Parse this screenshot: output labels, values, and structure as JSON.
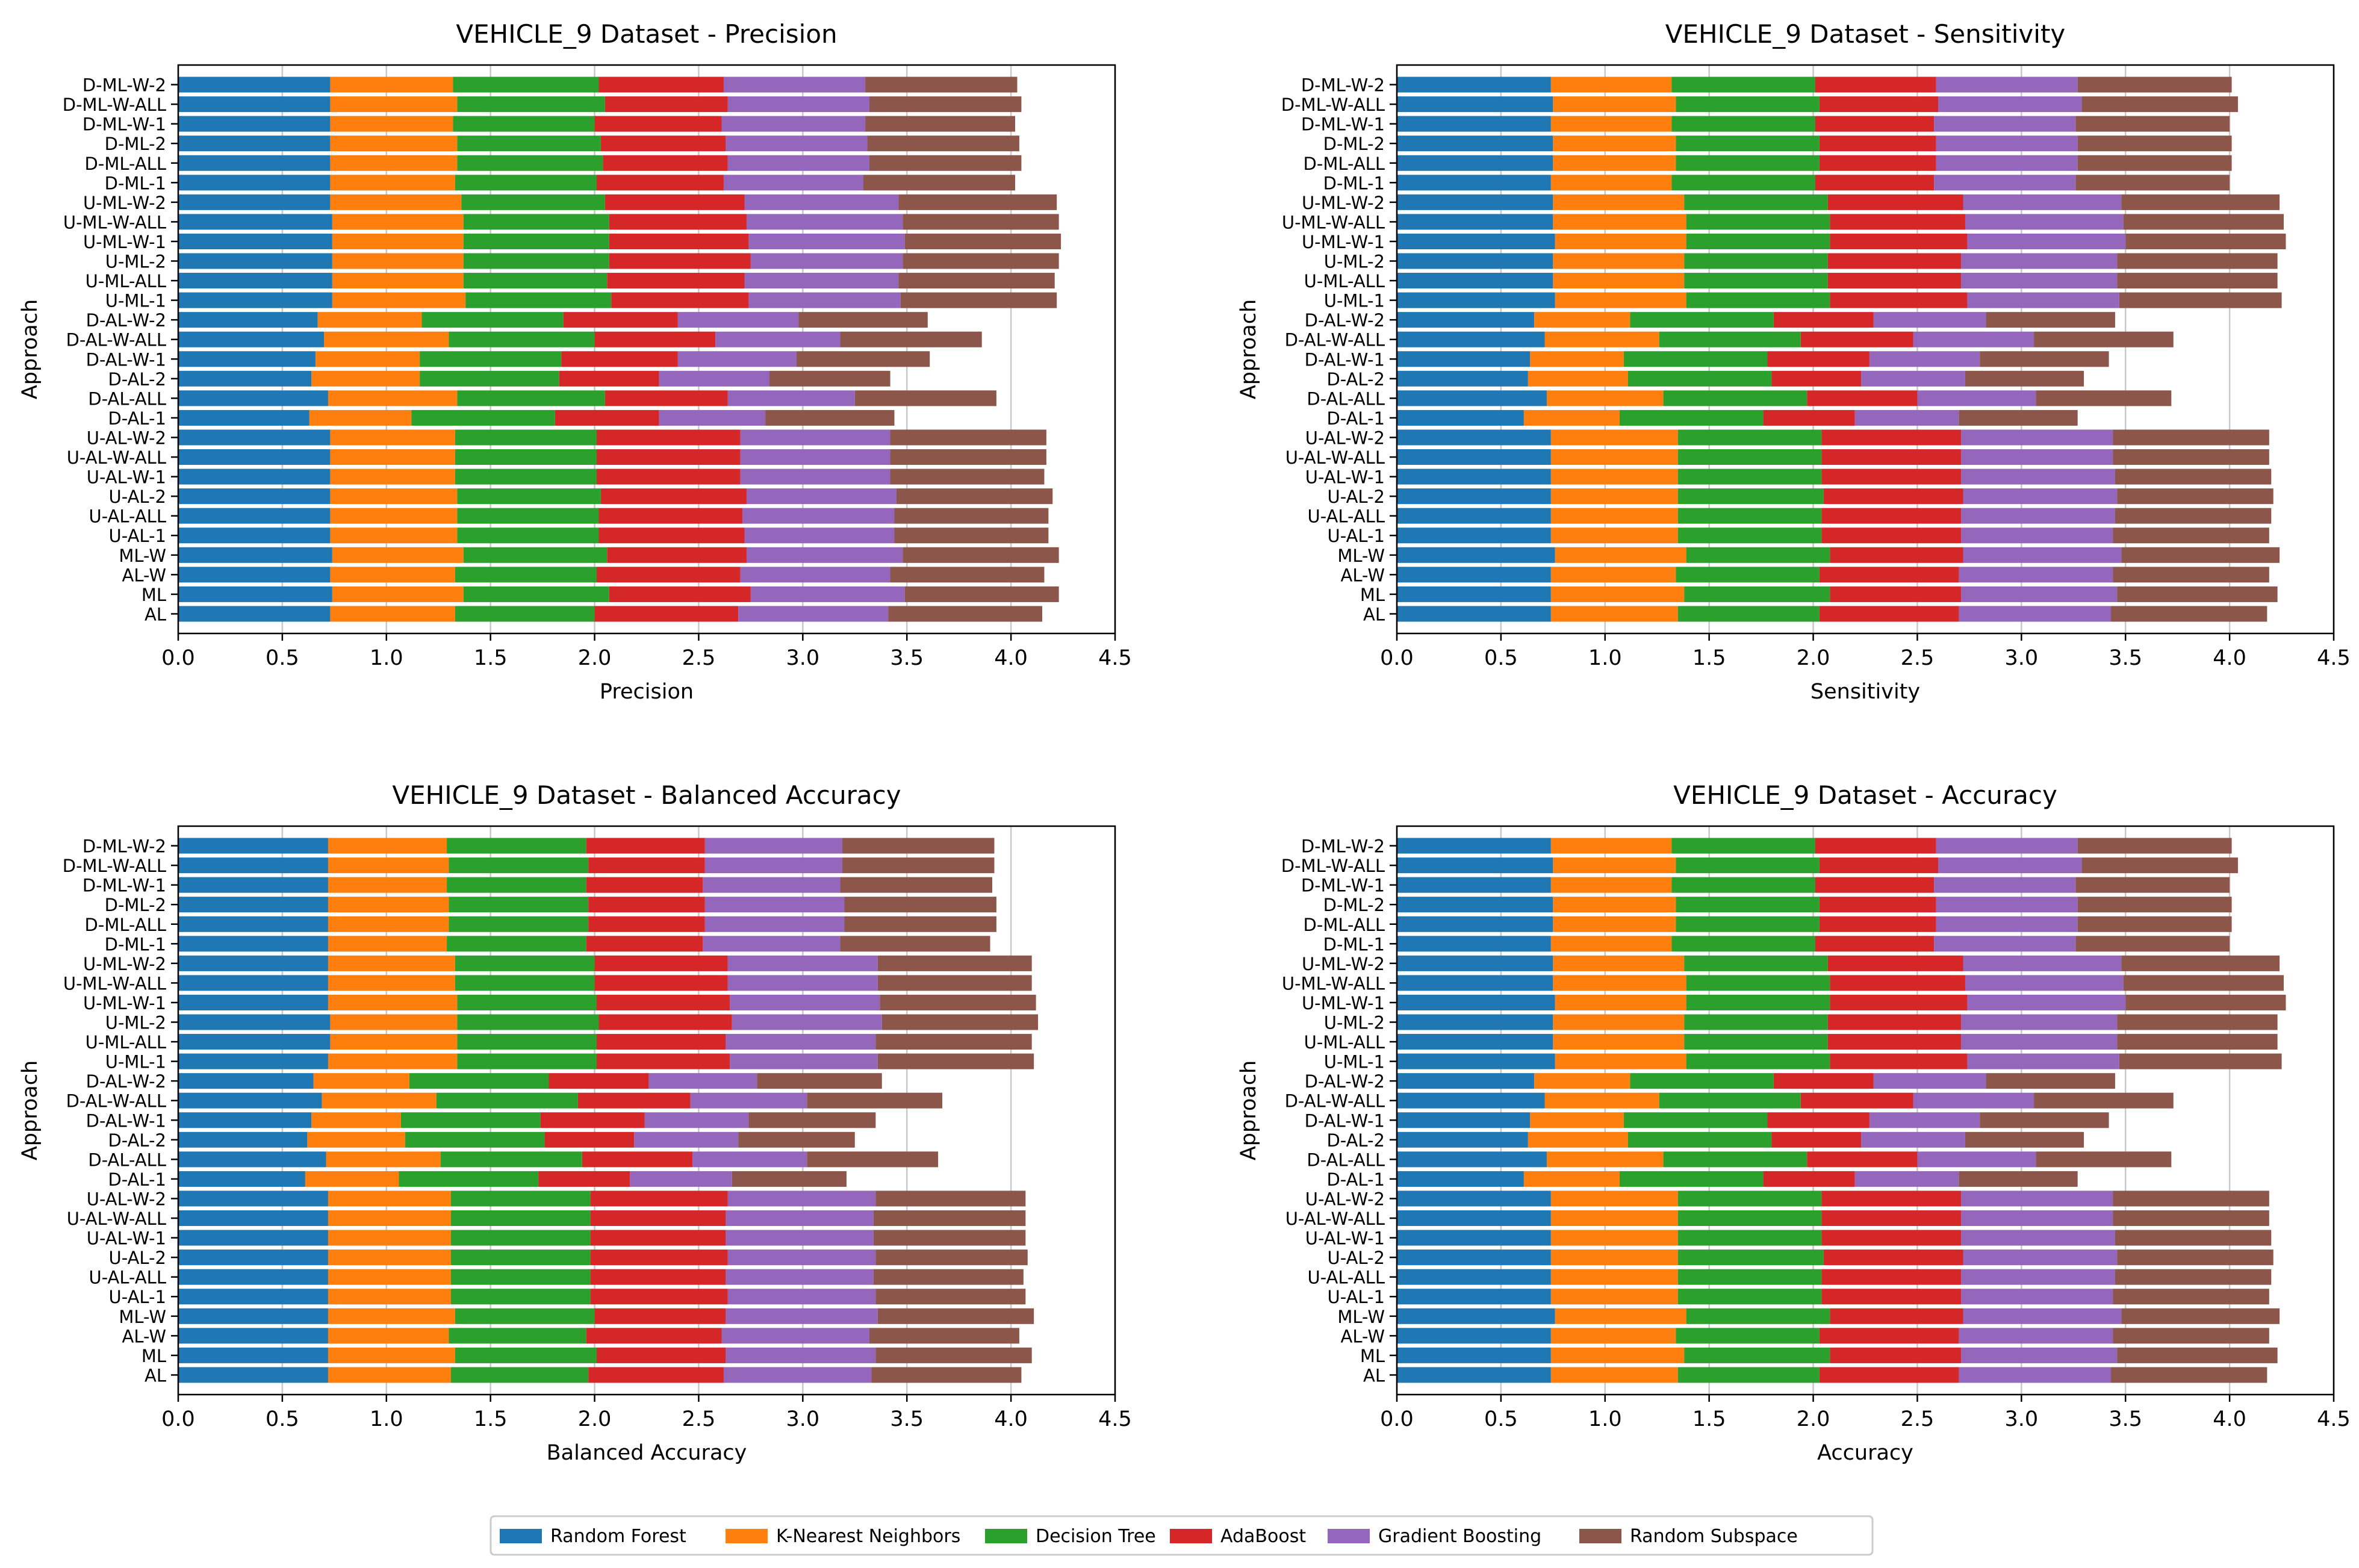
{
  "categories": [
    "AL",
    "ML",
    "AL-W",
    "ML-W",
    "U-AL-1",
    "U-AL-ALL",
    "U-AL-2",
    "U-AL-W-1",
    "U-AL-W-ALL",
    "U-AL-W-2",
    "D-AL-1",
    "D-AL-ALL",
    "D-AL-2",
    "D-AL-W-1",
    "D-AL-W-ALL",
    "D-AL-W-2",
    "U-ML-1",
    "U-ML-ALL",
    "U-ML-2",
    "U-ML-W-1",
    "U-ML-W-ALL",
    "U-ML-W-2",
    "D-ML-1",
    "D-ML-ALL",
    "D-ML-2",
    "D-ML-W-1",
    "D-ML-W-ALL",
    "D-ML-W-2"
  ],
  "legend": [
    {
      "name": "Random Forest",
      "color": "#1f77b4"
    },
    {
      "name": "K-Nearest Neighbors",
      "color": "#ff7f0e"
    },
    {
      "name": "Decision Tree",
      "color": "#2ca02c"
    },
    {
      "name": "AdaBoost",
      "color": "#d62728"
    },
    {
      "name": "Gradient Boosting",
      "color": "#9467bd"
    },
    {
      "name": "Random Subspace",
      "color": "#8c564b"
    }
  ],
  "chart_data": [
    {
      "type": "bar",
      "orientation": "horizontal",
      "stacked": true,
      "title": "VEHICLE_9 Dataset - Precision",
      "xlabel": "Precision",
      "ylabel": "Approach",
      "xlim": [
        0,
        4.5
      ],
      "xticks": [
        "0.0",
        "0.5",
        "1.0",
        "1.5",
        "2.0",
        "2.5",
        "3.0",
        "3.5",
        "4.0",
        "4.5"
      ],
      "grid": "vertical",
      "series": [
        {
          "name": "Random Forest",
          "values": [
            0.73,
            0.74,
            0.73,
            0.74,
            0.73,
            0.73,
            0.73,
            0.73,
            0.73,
            0.73,
            0.63,
            0.72,
            0.64,
            0.66,
            0.7,
            0.67,
            0.74,
            0.74,
            0.74,
            0.74,
            0.74,
            0.73,
            0.73,
            0.73,
            0.73,
            0.73,
            0.73,
            0.73
          ]
        },
        {
          "name": "K-Nearest Neighbors",
          "values": [
            0.6,
            0.63,
            0.6,
            0.63,
            0.61,
            0.61,
            0.61,
            0.6,
            0.6,
            0.6,
            0.49,
            0.62,
            0.52,
            0.5,
            0.6,
            0.5,
            0.64,
            0.63,
            0.63,
            0.63,
            0.63,
            0.63,
            0.6,
            0.61,
            0.61,
            0.59,
            0.61,
            0.59
          ]
        },
        {
          "name": "Decision Tree",
          "values": [
            0.67,
            0.7,
            0.68,
            0.69,
            0.68,
            0.68,
            0.69,
            0.68,
            0.68,
            0.68,
            0.69,
            0.71,
            0.67,
            0.68,
            0.7,
            0.68,
            0.7,
            0.69,
            0.7,
            0.7,
            0.7,
            0.69,
            0.68,
            0.7,
            0.69,
            0.68,
            0.71,
            0.7
          ]
        },
        {
          "name": "AdaBoost",
          "values": [
            0.69,
            0.68,
            0.69,
            0.67,
            0.7,
            0.69,
            0.7,
            0.69,
            0.69,
            0.69,
            0.5,
            0.59,
            0.48,
            0.56,
            0.58,
            0.55,
            0.66,
            0.66,
            0.68,
            0.67,
            0.66,
            0.67,
            0.61,
            0.6,
            0.6,
            0.61,
            0.59,
            0.6
          ]
        },
        {
          "name": "Gradient Boosting",
          "values": [
            0.72,
            0.74,
            0.72,
            0.75,
            0.72,
            0.73,
            0.72,
            0.72,
            0.72,
            0.72,
            0.51,
            0.61,
            0.53,
            0.57,
            0.6,
            0.58,
            0.73,
            0.74,
            0.73,
            0.75,
            0.75,
            0.74,
            0.67,
            0.68,
            0.68,
            0.69,
            0.68,
            0.68
          ]
        },
        {
          "name": "Random Subspace",
          "values": [
            0.74,
            0.74,
            0.74,
            0.75,
            0.74,
            0.74,
            0.75,
            0.74,
            0.75,
            0.75,
            0.62,
            0.68,
            0.58,
            0.64,
            0.68,
            0.62,
            0.75,
            0.75,
            0.75,
            0.75,
            0.75,
            0.76,
            0.73,
            0.73,
            0.73,
            0.72,
            0.73,
            0.73
          ]
        }
      ]
    },
    {
      "type": "bar",
      "orientation": "horizontal",
      "stacked": true,
      "title": "VEHICLE_9 Dataset - Sensitivity",
      "xlabel": "Sensitivity",
      "ylabel": "Approach",
      "xlim": [
        0,
        4.5
      ],
      "xticks": [
        "0.0",
        "0.5",
        "1.0",
        "1.5",
        "2.0",
        "2.5",
        "3.0",
        "3.5",
        "4.0",
        "4.5"
      ],
      "grid": "vertical",
      "series": [
        {
          "name": "Random Forest",
          "values": [
            0.74,
            0.74,
            0.74,
            0.76,
            0.74,
            0.74,
            0.74,
            0.74,
            0.74,
            0.74,
            0.61,
            0.72,
            0.63,
            0.64,
            0.71,
            0.66,
            0.76,
            0.75,
            0.75,
            0.76,
            0.75,
            0.75,
            0.74,
            0.75,
            0.75,
            0.74,
            0.75,
            0.74
          ]
        },
        {
          "name": "K-Nearest Neighbors",
          "values": [
            0.61,
            0.64,
            0.6,
            0.63,
            0.61,
            0.61,
            0.61,
            0.61,
            0.61,
            0.61,
            0.46,
            0.56,
            0.48,
            0.45,
            0.55,
            0.46,
            0.63,
            0.63,
            0.63,
            0.63,
            0.64,
            0.63,
            0.58,
            0.59,
            0.59,
            0.58,
            0.59,
            0.58
          ]
        },
        {
          "name": "Decision Tree",
          "values": [
            0.68,
            0.7,
            0.69,
            0.69,
            0.69,
            0.69,
            0.7,
            0.69,
            0.69,
            0.69,
            0.69,
            0.69,
            0.69,
            0.69,
            0.68,
            0.69,
            0.69,
            0.69,
            0.69,
            0.69,
            0.69,
            0.69,
            0.69,
            0.69,
            0.69,
            0.69,
            0.69,
            0.69
          ]
        },
        {
          "name": "AdaBoost",
          "values": [
            0.67,
            0.63,
            0.67,
            0.64,
            0.67,
            0.67,
            0.67,
            0.67,
            0.67,
            0.67,
            0.44,
            0.53,
            0.43,
            0.49,
            0.54,
            0.48,
            0.66,
            0.64,
            0.64,
            0.66,
            0.65,
            0.65,
            0.57,
            0.56,
            0.56,
            0.57,
            0.57,
            0.58
          ]
        },
        {
          "name": "Gradient Boosting",
          "values": [
            0.73,
            0.75,
            0.74,
            0.76,
            0.73,
            0.74,
            0.74,
            0.74,
            0.73,
            0.73,
            0.5,
            0.57,
            0.5,
            0.53,
            0.58,
            0.54,
            0.73,
            0.75,
            0.75,
            0.76,
            0.76,
            0.76,
            0.68,
            0.68,
            0.68,
            0.68,
            0.69,
            0.68
          ]
        },
        {
          "name": "Random Subspace",
          "values": [
            0.75,
            0.77,
            0.75,
            0.76,
            0.75,
            0.75,
            0.75,
            0.75,
            0.75,
            0.75,
            0.57,
            0.65,
            0.57,
            0.62,
            0.67,
            0.62,
            0.78,
            0.77,
            0.77,
            0.77,
            0.77,
            0.76,
            0.74,
            0.74,
            0.74,
            0.74,
            0.75,
            0.74
          ]
        }
      ]
    },
    {
      "type": "bar",
      "orientation": "horizontal",
      "stacked": true,
      "title": "VEHICLE_9 Dataset - Balanced Accuracy",
      "xlabel": "Balanced Accuracy",
      "ylabel": "Approach",
      "xlim": [
        0,
        4.5
      ],
      "xticks": [
        "0.0",
        "0.5",
        "1.0",
        "1.5",
        "2.0",
        "2.5",
        "3.0",
        "3.5",
        "4.0",
        "4.5"
      ],
      "grid": "vertical",
      "series": [
        {
          "name": "Random Forest",
          "values": [
            0.72,
            0.72,
            0.72,
            0.72,
            0.72,
            0.72,
            0.72,
            0.72,
            0.72,
            0.72,
            0.61,
            0.71,
            0.62,
            0.64,
            0.69,
            0.65,
            0.72,
            0.73,
            0.73,
            0.72,
            0.72,
            0.72,
            0.72,
            0.72,
            0.72,
            0.72,
            0.72,
            0.72
          ]
        },
        {
          "name": "K-Nearest Neighbors",
          "values": [
            0.59,
            0.61,
            0.58,
            0.61,
            0.59,
            0.59,
            0.59,
            0.59,
            0.59,
            0.59,
            0.45,
            0.55,
            0.47,
            0.43,
            0.55,
            0.46,
            0.62,
            0.61,
            0.61,
            0.62,
            0.61,
            0.61,
            0.57,
            0.58,
            0.58,
            0.57,
            0.58,
            0.57
          ]
        },
        {
          "name": "Decision Tree",
          "values": [
            0.66,
            0.68,
            0.66,
            0.67,
            0.67,
            0.67,
            0.67,
            0.67,
            0.67,
            0.67,
            0.67,
            0.68,
            0.67,
            0.67,
            0.68,
            0.67,
            0.67,
            0.67,
            0.68,
            0.67,
            0.67,
            0.67,
            0.67,
            0.67,
            0.67,
            0.67,
            0.67,
            0.67
          ]
        },
        {
          "name": "AdaBoost",
          "values": [
            0.65,
            0.62,
            0.65,
            0.63,
            0.66,
            0.65,
            0.66,
            0.65,
            0.65,
            0.66,
            0.44,
            0.53,
            0.43,
            0.5,
            0.54,
            0.48,
            0.64,
            0.62,
            0.64,
            0.64,
            0.64,
            0.64,
            0.56,
            0.56,
            0.56,
            0.56,
            0.56,
            0.57
          ]
        },
        {
          "name": "Gradient Boosting",
          "values": [
            0.71,
            0.72,
            0.71,
            0.73,
            0.71,
            0.71,
            0.71,
            0.71,
            0.71,
            0.71,
            0.49,
            0.55,
            0.5,
            0.5,
            0.56,
            0.52,
            0.71,
            0.72,
            0.72,
            0.72,
            0.72,
            0.72,
            0.66,
            0.67,
            0.67,
            0.66,
            0.66,
            0.66
          ]
        },
        {
          "name": "Random Subspace",
          "values": [
            0.72,
            0.75,
            0.72,
            0.75,
            0.72,
            0.72,
            0.73,
            0.73,
            0.73,
            0.72,
            0.55,
            0.63,
            0.56,
            0.61,
            0.65,
            0.6,
            0.75,
            0.75,
            0.75,
            0.75,
            0.74,
            0.74,
            0.72,
            0.73,
            0.73,
            0.73,
            0.73,
            0.73
          ]
        }
      ]
    },
    {
      "type": "bar",
      "orientation": "horizontal",
      "stacked": true,
      "title": "VEHICLE_9 Dataset - Accuracy",
      "xlabel": "Accuracy",
      "ylabel": "Approach",
      "xlim": [
        0,
        4.5
      ],
      "xticks": [
        "0.0",
        "0.5",
        "1.0",
        "1.5",
        "2.0",
        "2.5",
        "3.0",
        "3.5",
        "4.0",
        "4.5"
      ],
      "grid": "vertical",
      "series": [
        {
          "name": "Random Forest",
          "values": [
            0.74,
            0.74,
            0.74,
            0.76,
            0.74,
            0.74,
            0.74,
            0.74,
            0.74,
            0.74,
            0.61,
            0.72,
            0.63,
            0.64,
            0.71,
            0.66,
            0.76,
            0.75,
            0.75,
            0.76,
            0.75,
            0.75,
            0.74,
            0.75,
            0.75,
            0.74,
            0.75,
            0.74
          ]
        },
        {
          "name": "K-Nearest Neighbors",
          "values": [
            0.61,
            0.64,
            0.6,
            0.63,
            0.61,
            0.61,
            0.61,
            0.61,
            0.61,
            0.61,
            0.46,
            0.56,
            0.48,
            0.45,
            0.55,
            0.46,
            0.63,
            0.63,
            0.63,
            0.63,
            0.64,
            0.63,
            0.58,
            0.59,
            0.59,
            0.58,
            0.59,
            0.58
          ]
        },
        {
          "name": "Decision Tree",
          "values": [
            0.68,
            0.7,
            0.69,
            0.69,
            0.69,
            0.69,
            0.7,
            0.69,
            0.69,
            0.69,
            0.69,
            0.69,
            0.69,
            0.69,
            0.68,
            0.69,
            0.69,
            0.69,
            0.69,
            0.69,
            0.69,
            0.69,
            0.69,
            0.69,
            0.69,
            0.69,
            0.69,
            0.69
          ]
        },
        {
          "name": "AdaBoost",
          "values": [
            0.67,
            0.63,
            0.67,
            0.64,
            0.67,
            0.67,
            0.67,
            0.67,
            0.67,
            0.67,
            0.44,
            0.53,
            0.43,
            0.49,
            0.54,
            0.48,
            0.66,
            0.64,
            0.64,
            0.66,
            0.65,
            0.65,
            0.57,
            0.56,
            0.56,
            0.57,
            0.57,
            0.58
          ]
        },
        {
          "name": "Gradient Boosting",
          "values": [
            0.73,
            0.75,
            0.74,
            0.76,
            0.73,
            0.74,
            0.74,
            0.74,
            0.73,
            0.73,
            0.5,
            0.57,
            0.5,
            0.53,
            0.58,
            0.54,
            0.73,
            0.75,
            0.75,
            0.76,
            0.76,
            0.76,
            0.68,
            0.68,
            0.68,
            0.68,
            0.69,
            0.68
          ]
        },
        {
          "name": "Random Subspace",
          "values": [
            0.75,
            0.77,
            0.75,
            0.76,
            0.75,
            0.75,
            0.75,
            0.75,
            0.75,
            0.75,
            0.57,
            0.65,
            0.57,
            0.62,
            0.67,
            0.62,
            0.78,
            0.77,
            0.77,
            0.77,
            0.77,
            0.76,
            0.74,
            0.74,
            0.74,
            0.74,
            0.75,
            0.74
          ]
        }
      ]
    }
  ]
}
